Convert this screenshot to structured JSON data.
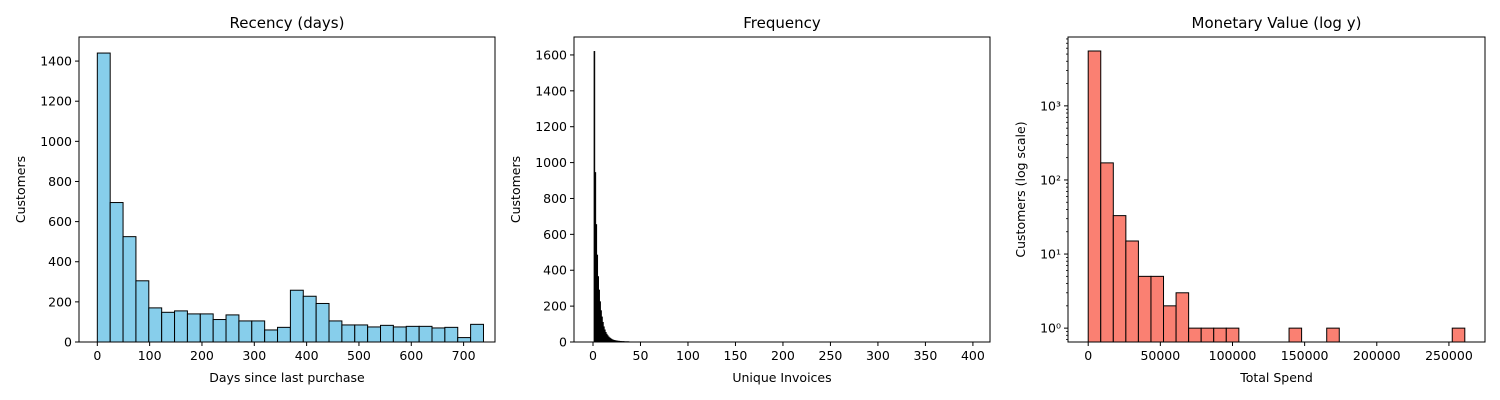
{
  "chart_data": [
    {
      "type": "bar",
      "title": "Recency (days)",
      "xlabel": "Days since last purchase",
      "ylabel": "Customers",
      "xlim": [
        -35,
        760
      ],
      "ylim": [
        0,
        1520
      ],
      "xticks": [
        0,
        100,
        200,
        300,
        400,
        500,
        600,
        700
      ],
      "yticks": [
        0,
        200,
        400,
        600,
        800,
        1000,
        1200,
        1400
      ],
      "bar_color": "#87ceeb",
      "edge_color": "#000000",
      "bin_start": 0,
      "bin_width": 24.6,
      "values": [
        1440,
        695,
        525,
        305,
        170,
        148,
        155,
        140,
        140,
        112,
        135,
        105,
        105,
        60,
        73,
        258,
        228,
        192,
        105,
        85,
        85,
        75,
        83,
        75,
        78,
        78,
        70,
        73,
        22,
        88
      ]
    },
    {
      "type": "bar",
      "title": "Frequency",
      "xlabel": "Unique Invoices",
      "ylabel": "Customers",
      "xlim": [
        -20,
        418
      ],
      "ylim": [
        0,
        1700
      ],
      "xticks": [
        0,
        50,
        100,
        150,
        200,
        250,
        300,
        350,
        400
      ],
      "yticks": [
        0,
        200,
        400,
        600,
        800,
        1000,
        1200,
        1400,
        1600
      ],
      "bar_color": "#000000",
      "edge_color": "#000000",
      "bin_start": 1,
      "bin_width": 1,
      "values": [
        1620,
        945,
        655,
        485,
        365,
        290,
        225,
        175,
        140,
        110,
        85,
        68,
        54,
        44,
        36,
        29,
        24,
        20,
        16,
        13,
        11,
        9,
        8,
        7,
        6,
        5,
        5,
        4,
        4,
        3,
        3,
        3,
        2,
        2,
        2,
        2,
        2,
        1,
        1,
        1,
        1,
        1,
        1,
        1,
        1,
        1,
        1,
        1,
        1,
        1,
        1,
        1,
        1,
        1,
        1,
        1,
        1,
        1,
        1,
        1
      ]
    },
    {
      "type": "bar",
      "title": "Monetary Value (log y)",
      "xlabel": "Total Spend",
      "ylabel": "Customers (log scale)",
      "log_y": true,
      "xlim": [
        -14000,
        275000
      ],
      "ylim": [
        0.65,
        8500
      ],
      "xticks": [
        0,
        50000,
        100000,
        150000,
        200000,
        250000
      ],
      "yticks": [
        1,
        10,
        100,
        1000
      ],
      "ytick_labels": [
        "10⁰",
        "10¹",
        "10²",
        "10³"
      ],
      "bar_color": "#fa8072",
      "edge_color": "#000000",
      "bin_start": 0,
      "bin_width": 8700,
      "values": [
        5500,
        170,
        33,
        15,
        5,
        5,
        2,
        3,
        1,
        1,
        1,
        1,
        0,
        0,
        0,
        0,
        1,
        0,
        0,
        1,
        0,
        0,
        0,
        0,
        0,
        0,
        0,
        0,
        0,
        1
      ]
    }
  ]
}
